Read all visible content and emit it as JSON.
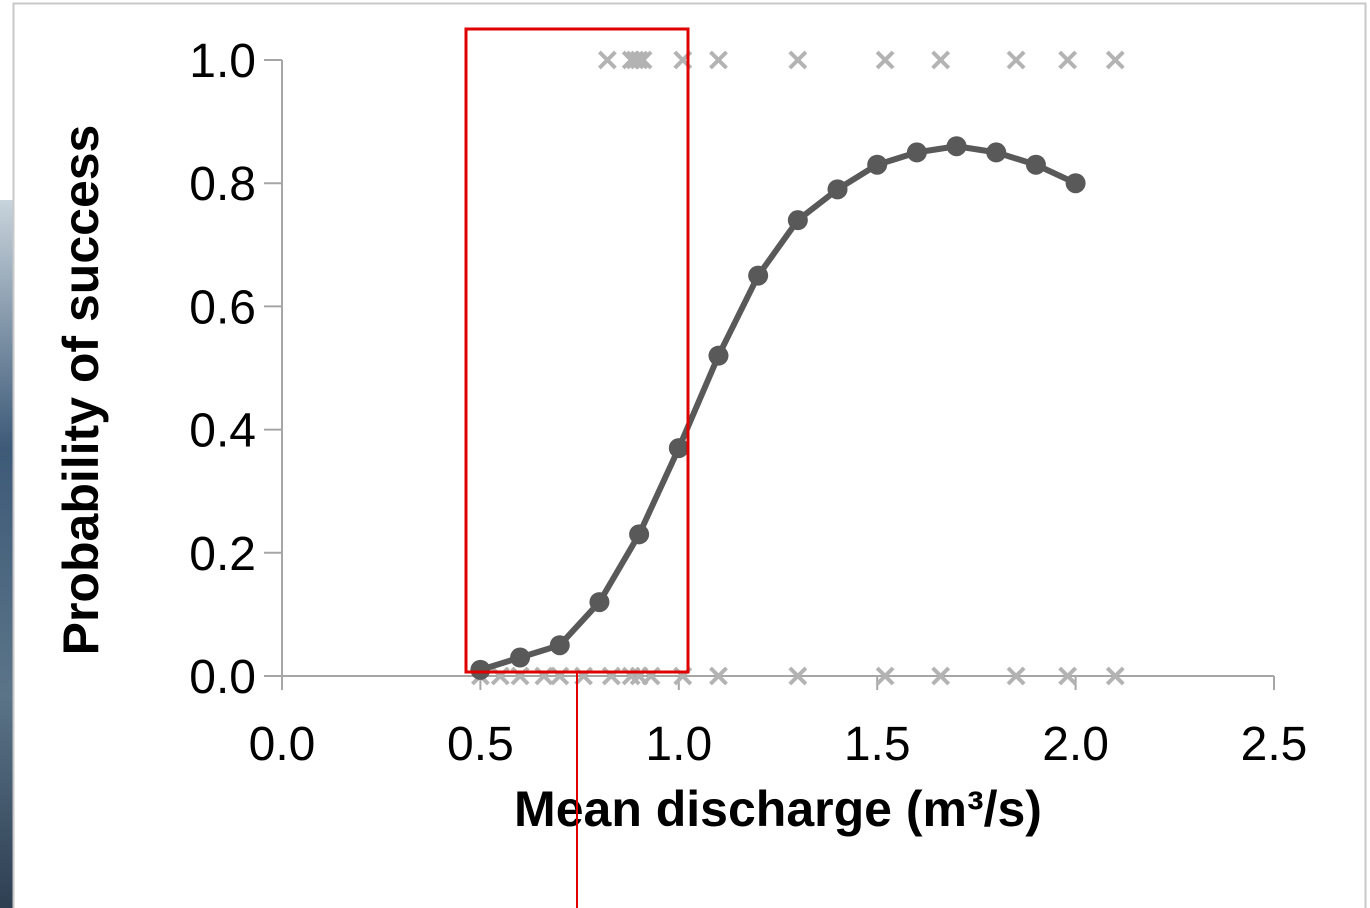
{
  "chart_data": {
    "type": "scatter",
    "xlabel": "Mean discharge (m³/s)",
    "ylabel": "Probability of success",
    "xlim": [
      0,
      2.5
    ],
    "ylim": [
      0,
      1
    ],
    "xticks": [
      {
        "value": 0,
        "label": "0.0"
      },
      0.5,
      {
        "value": 1,
        "label": "1.0"
      },
      1.5,
      {
        "value": 2,
        "label": "2.0"
      },
      2.5
    ],
    "yticks": [
      {
        "value": 0,
        "label": "0.0"
      },
      0.2,
      0.4,
      0.6,
      0.8,
      {
        "value": 1,
        "label": "1.0"
      }
    ],
    "series": [
      {
        "color": "#b3b3b3",
        "marker": "x",
        "line": false,
        "x": [
          0.82,
          0.88,
          0.89,
          0.9,
          0.91,
          1.01,
          1.1,
          1.3,
          1.52,
          1.66,
          1.85,
          1.98,
          2.1
        ],
        "values": [
          1,
          1,
          1,
          1,
          1,
          1,
          1,
          1,
          1,
          1,
          1,
          1,
          1
        ]
      },
      {
        "color": "#b3b3b3",
        "marker": "x",
        "line": false,
        "x": [
          0.5,
          0.55,
          0.6,
          0.66,
          0.7,
          0.76,
          0.83,
          0.88,
          0.9,
          0.93,
          1.01,
          1.1,
          1.3,
          1.52,
          1.66,
          1.85,
          1.98,
          2.1
        ],
        "values": [
          0,
          0,
          0,
          0,
          0,
          0,
          0,
          0,
          0,
          0,
          0,
          0,
          0,
          0,
          0,
          0,
          0,
          0
        ]
      },
      {
        "color": "#595959",
        "marker": "circle",
        "line": true,
        "x": [
          0.5,
          0.6,
          0.7,
          0.8,
          0.9,
          1.0,
          1.1,
          1.2,
          1.3,
          1.4,
          1.5,
          1.6,
          1.7,
          1.8,
          1.9,
          2.0
        ],
        "values": [
          0.01,
          0.03,
          0.05,
          0.12,
          0.23,
          0.37,
          0.52,
          0.65,
          0.74,
          0.79,
          0.83,
          0.85,
          0.86,
          0.85,
          0.83,
          0.8
        ]
      }
    ]
  }
}
